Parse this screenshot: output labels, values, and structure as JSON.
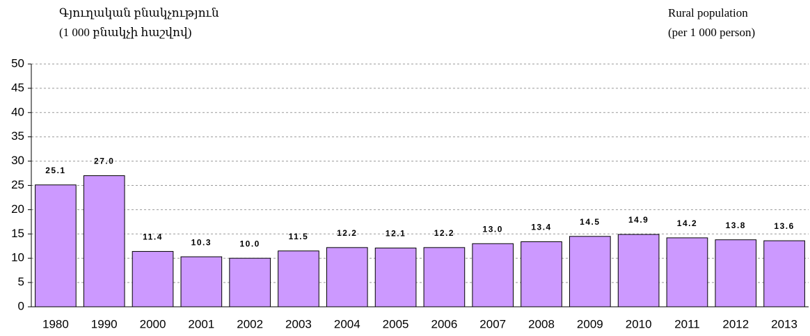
{
  "chart_data": {
    "type": "bar",
    "title": "Գյուղական բնակչություն",
    "subtitle": "(1 000 բնակչի հաշվով)",
    "title_en": "Rural population",
    "subtitle_en": "(per 1 000 person)",
    "categories": [
      "1980",
      "1990",
      "2000",
      "2001",
      "2002",
      "2003",
      "2004",
      "2005",
      "2006",
      "2007",
      "2008",
      "2009",
      "2010",
      "2011",
      "2012",
      "2013"
    ],
    "values": [
      25.1,
      27.0,
      11.4,
      10.3,
      10.0,
      11.5,
      12.2,
      12.1,
      12.2,
      13.0,
      13.4,
      14.5,
      14.9,
      14.2,
      13.8,
      13.6
    ],
    "value_labels": [
      "25.1",
      "27.0",
      "11.4",
      "10.3",
      "10.0",
      "11.5",
      "12.2",
      "12.1",
      "12.2",
      "13.0",
      "13.4",
      "14.5",
      "14.9",
      "14.2",
      "13.8",
      "13.6"
    ],
    "color": "#cc99ff",
    "ylim": [
      0,
      50
    ],
    "yticks": [
      0,
      5,
      10,
      15,
      20,
      25,
      30,
      35,
      40,
      45,
      50
    ],
    "grid": true
  }
}
